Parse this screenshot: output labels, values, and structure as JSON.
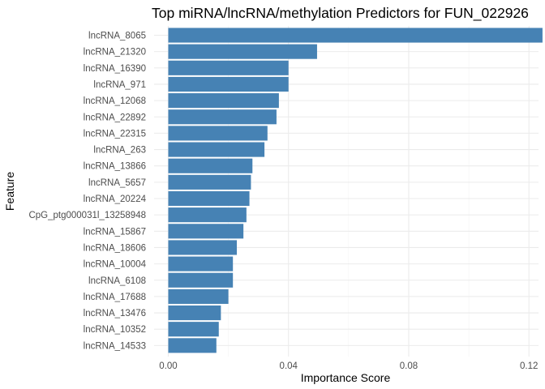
{
  "chart_data": {
    "type": "bar",
    "orientation": "horizontal",
    "title": "Top miRNA/lncRNA/methylation Predictors for FUN_022926",
    "xlabel": "Importance Score",
    "ylabel": "Feature",
    "xlim": [
      0,
      0.1225
    ],
    "x_ticks": [
      0.0,
      0.04,
      0.08,
      0.12
    ],
    "x_tick_labels": [
      "0.00",
      "0.04",
      "0.08",
      "0.12"
    ],
    "grid": true,
    "legend": "none",
    "bar_color": "#4682b4",
    "categories": [
      "lncRNA_8065",
      "lncRNA_21320",
      "lncRNA_16390",
      "lncRNA_971",
      "lncRNA_12068",
      "lncRNA_22892",
      "lncRNA_22315",
      "lncRNA_263",
      "lncRNA_13866",
      "lncRNA_5657",
      "lncRNA_20224",
      "CpG_ptg000031l_13258948",
      "lncRNA_15867",
      "lncRNA_18606",
      "lncRNA_10004",
      "lncRNA_6108",
      "lncRNA_17688",
      "lncRNA_13476",
      "lncRNA_10352",
      "lncRNA_14533"
    ],
    "values": [
      0.1245,
      0.0495,
      0.04,
      0.04,
      0.0368,
      0.036,
      0.033,
      0.032,
      0.028,
      0.0275,
      0.027,
      0.026,
      0.025,
      0.0228,
      0.0215,
      0.0215,
      0.02,
      0.0175,
      0.0168,
      0.016
    ]
  }
}
